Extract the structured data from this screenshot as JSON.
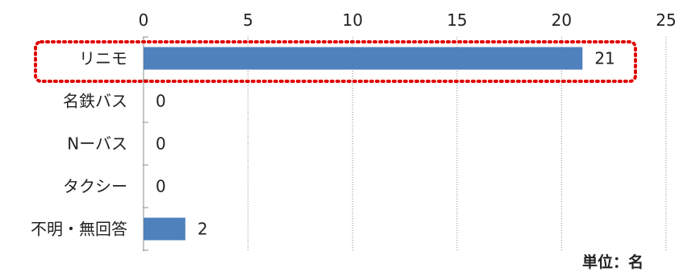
{
  "chart_data": {
    "type": "bar",
    "orientation": "horizontal",
    "categories": [
      "リニモ",
      "名鉄バス",
      "Nーバス",
      "タクシー",
      "不明・無回答"
    ],
    "values": [
      21,
      0,
      0,
      0,
      2
    ],
    "xlim": [
      0,
      25
    ],
    "xticks": [
      0,
      5,
      10,
      15,
      20,
      25
    ],
    "unit_label": "単位：名",
    "grid": "vertical dashed",
    "axis_position": "top",
    "bar_color": "#4f81bd",
    "highlight": {
      "category": "リニモ",
      "style": "dotted rectangle",
      "color": "#e00000"
    }
  }
}
